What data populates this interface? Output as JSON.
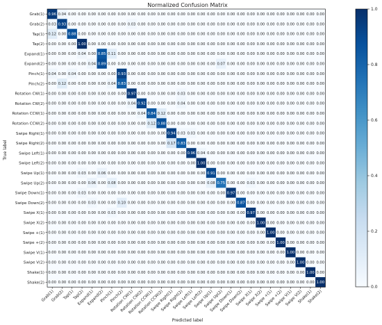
{
  "chart_data": {
    "type": "heatmap",
    "title": "Normalized Confusion Matrix",
    "xlabel": "Predicted label",
    "ylabel": "True label",
    "labels": [
      "Grab(1)",
      "Grab(2)",
      "Tap(1)",
      "Tap(2)",
      "Expand(1)",
      "Expand(2)",
      "Pinch(1)",
      "Pinch(2)",
      "Rotation CW(1)",
      "Rotation CW(2)",
      "Rotation CCW(1)",
      "Rotation CCW(2)",
      "Swipe Right(1)",
      "Swipe Right(2)",
      "Swipe Left(1)",
      "Swipe Left(2)",
      "Swipe Up(1)",
      "Swipe Up(2)",
      "Swipe Down(1)",
      "Swipe Down(2)",
      "Swipe X(1)",
      "Swipe X(2)",
      "Swipe +(1)",
      "Swipe +(2)",
      "Swipe V(1)",
      "Swipe V(2)",
      "Shake(1)",
      "Shake(2)"
    ],
    "zlim": [
      0,
      1
    ],
    "colorbar_ticks": [
      "0.0",
      "0.2",
      "0.4",
      "0.6",
      "0.8",
      "1.0"
    ],
    "colormap": [
      "#f7fbff",
      "#deebf7",
      "#c6dbef",
      "#9ecae1",
      "#6baed6",
      "#4292c6",
      "#2171b5",
      "#08519c",
      "#08306b"
    ],
    "matrix": [
      [
        0.96,
        0.04,
        0,
        0,
        0,
        0,
        0,
        0,
        0,
        0,
        0,
        0,
        0,
        0,
        0,
        0,
        0,
        0,
        0,
        0,
        0,
        0,
        0,
        0,
        0,
        0,
        0,
        0
      ],
      [
        0.03,
        0.93,
        0,
        0,
        0,
        0,
        0,
        0,
        0.03,
        0,
        0,
        0,
        0,
        0,
        0,
        0,
        0,
        0,
        0,
        0,
        0,
        0,
        0,
        0,
        0,
        0,
        0,
        0
      ],
      [
        0.12,
        0,
        0.88,
        0,
        0,
        0,
        0,
        0,
        0,
        0,
        0,
        0,
        0,
        0,
        0,
        0,
        0,
        0,
        0,
        0,
        0,
        0,
        0,
        0,
        0,
        0,
        0,
        0
      ],
      [
        0,
        0,
        0,
        1.0,
        0,
        0,
        0,
        0,
        0,
        0,
        0,
        0,
        0,
        0,
        0,
        0,
        0,
        0,
        0,
        0,
        0,
        0,
        0,
        0,
        0,
        0,
        0,
        0
      ],
      [
        0,
        0,
        0,
        0.04,
        0,
        0.85,
        0.11,
        0,
        0,
        0,
        0,
        0,
        0,
        0,
        0,
        0,
        0,
        0,
        0,
        0,
        0,
        0,
        0,
        0,
        0,
        0,
        0,
        0
      ],
      [
        0,
        0,
        0,
        0,
        0.04,
        0.89,
        0,
        0,
        0,
        0,
        0,
        0,
        0,
        0,
        0,
        0,
        0,
        0.07,
        0,
        0,
        0,
        0,
        0,
        0,
        0,
        0,
        0,
        0
      ],
      [
        0.04,
        0,
        0.04,
        0,
        0,
        0,
        0,
        0.93,
        0,
        0,
        0,
        0,
        0,
        0,
        0,
        0,
        0,
        0,
        0,
        0,
        0,
        0,
        0,
        0,
        0,
        0,
        0,
        0
      ],
      [
        0,
        0.12,
        0,
        0,
        0,
        0,
        0.04,
        0.83,
        0,
        0,
        0,
        0,
        0,
        0,
        0,
        0,
        0,
        0,
        0,
        0,
        0,
        0,
        0,
        0,
        0,
        0,
        0,
        0
      ],
      [
        0,
        0,
        0,
        0,
        0,
        0,
        0,
        0,
        0.97,
        0,
        0,
        0,
        0,
        0.03,
        0,
        0,
        0,
        0,
        0,
        0,
        0,
        0,
        0,
        0,
        0,
        0,
        0,
        0
      ],
      [
        0,
        0,
        0,
        0,
        0,
        0,
        0,
        0,
        0.04,
        0.92,
        0,
        0,
        0,
        0.04,
        0,
        0,
        0,
        0,
        0,
        0,
        0,
        0,
        0,
        0,
        0,
        0,
        0,
        0
      ],
      [
        0,
        0,
        0,
        0,
        0,
        0,
        0,
        0,
        0,
        0.04,
        0.84,
        0.12,
        0,
        0,
        0,
        0,
        0,
        0,
        0,
        0,
        0,
        0,
        0,
        0,
        0,
        0,
        0,
        0
      ],
      [
        0,
        0,
        0,
        0,
        0,
        0,
        0,
        0,
        0,
        0,
        0.12,
        0.88,
        0,
        0,
        0,
        0,
        0,
        0,
        0,
        0,
        0,
        0,
        0,
        0,
        0,
        0,
        0,
        0
      ],
      [
        0,
        0,
        0,
        0,
        0,
        0,
        0,
        0,
        0,
        0,
        0,
        0,
        0.94,
        0.03,
        0.03,
        0,
        0,
        0,
        0,
        0,
        0,
        0,
        0,
        0,
        0,
        0,
        0,
        0
      ],
      [
        0,
        0,
        0,
        0,
        0,
        0,
        0,
        0,
        0,
        0,
        0,
        0,
        0.17,
        0.83,
        0,
        0,
        0,
        0,
        0,
        0,
        0,
        0,
        0,
        0,
        0,
        0,
        0,
        0
      ],
      [
        0,
        0,
        0,
        0,
        0,
        0,
        0,
        0,
        0,
        0,
        0,
        0,
        0,
        0,
        0.96,
        0.04,
        0,
        0,
        0,
        0,
        0,
        0,
        0,
        0,
        0,
        0,
        0,
        0
      ],
      [
        0,
        0,
        0,
        0,
        0,
        0,
        0,
        0,
        0,
        0,
        0,
        0,
        0,
        0,
        0,
        1.0,
        0,
        0,
        0,
        0,
        0,
        0,
        0,
        0,
        0,
        0,
        0,
        0
      ],
      [
        0,
        0,
        0,
        0.03,
        0,
        0.06,
        0,
        0,
        0,
        0,
        0,
        0,
        0,
        0,
        0,
        0,
        0.91,
        0,
        0,
        0,
        0,
        0,
        0,
        0,
        0,
        0,
        0,
        0
      ],
      [
        0,
        0,
        0,
        0,
        0.06,
        0,
        0.08,
        0,
        0,
        0,
        0,
        0,
        0,
        0,
        0,
        0,
        0.08,
        0.75,
        0,
        0,
        0.03,
        0,
        0,
        0,
        0,
        0,
        0,
        0
      ],
      [
        0,
        0,
        0,
        0.03,
        0,
        0,
        0,
        0,
        0,
        0,
        0,
        0,
        0,
        0,
        0,
        0,
        0,
        0,
        0.97,
        0,
        0,
        0,
        0,
        0,
        0,
        0,
        0,
        0
      ],
      [
        0,
        0,
        0,
        0,
        0.03,
        0,
        0,
        0.1,
        0,
        0,
        0,
        0,
        0,
        0,
        0,
        0,
        0,
        0,
        0,
        0.87,
        0,
        0,
        0,
        0,
        0,
        0,
        0,
        0
      ],
      [
        0,
        0,
        0,
        0,
        0,
        0,
        0.03,
        0,
        0,
        0,
        0,
        0,
        0,
        0,
        0,
        0,
        0,
        0,
        0,
        0,
        0.97,
        0,
        0,
        0,
        0,
        0,
        0,
        0
      ],
      [
        0,
        0,
        0,
        0,
        0,
        0,
        0,
        0,
        0,
        0,
        0,
        0,
        0,
        0,
        0,
        0,
        0,
        0,
        0,
        0,
        0,
        1.0,
        0,
        0,
        0,
        0,
        0,
        0
      ],
      [
        0,
        0,
        0,
        0,
        0,
        0,
        0,
        0,
        0,
        0,
        0,
        0,
        0,
        0,
        0,
        0,
        0,
        0,
        0,
        0,
        0,
        0,
        1.0,
        0,
        0,
        0,
        0,
        0
      ],
      [
        0,
        0,
        0,
        0,
        0,
        0,
        0,
        0,
        0,
        0,
        0,
        0,
        0,
        0,
        0,
        0,
        0,
        0,
        0,
        0,
        0,
        0,
        0,
        1.0,
        0,
        0,
        0,
        0
      ],
      [
        0,
        0,
        0,
        0,
        0,
        0,
        0,
        0,
        0,
        0,
        0,
        0,
        0,
        0,
        0,
        0,
        0,
        0,
        0,
        0,
        0,
        0,
        0,
        0,
        1.0,
        0,
        0,
        0
      ],
      [
        0,
        0,
        0,
        0,
        0,
        0,
        0,
        0,
        0,
        0,
        0,
        0,
        0,
        0,
        0,
        0,
        0,
        0,
        0,
        0,
        0,
        0,
        0,
        0,
        0,
        1.0,
        0,
        0
      ],
      [
        0,
        0,
        0,
        0,
        0,
        0,
        0,
        0,
        0,
        0,
        0,
        0,
        0,
        0,
        0,
        0,
        0,
        0,
        0,
        0,
        0,
        0,
        0,
        0,
        0,
        0,
        1.0,
        0
      ],
      [
        0,
        0,
        0,
        0,
        0,
        0,
        0,
        0,
        0,
        0,
        0,
        0,
        0,
        0,
        0,
        0,
        0,
        0,
        0,
        0,
        0,
        0,
        0,
        0,
        0,
        0,
        0,
        1.0
      ]
    ]
  }
}
